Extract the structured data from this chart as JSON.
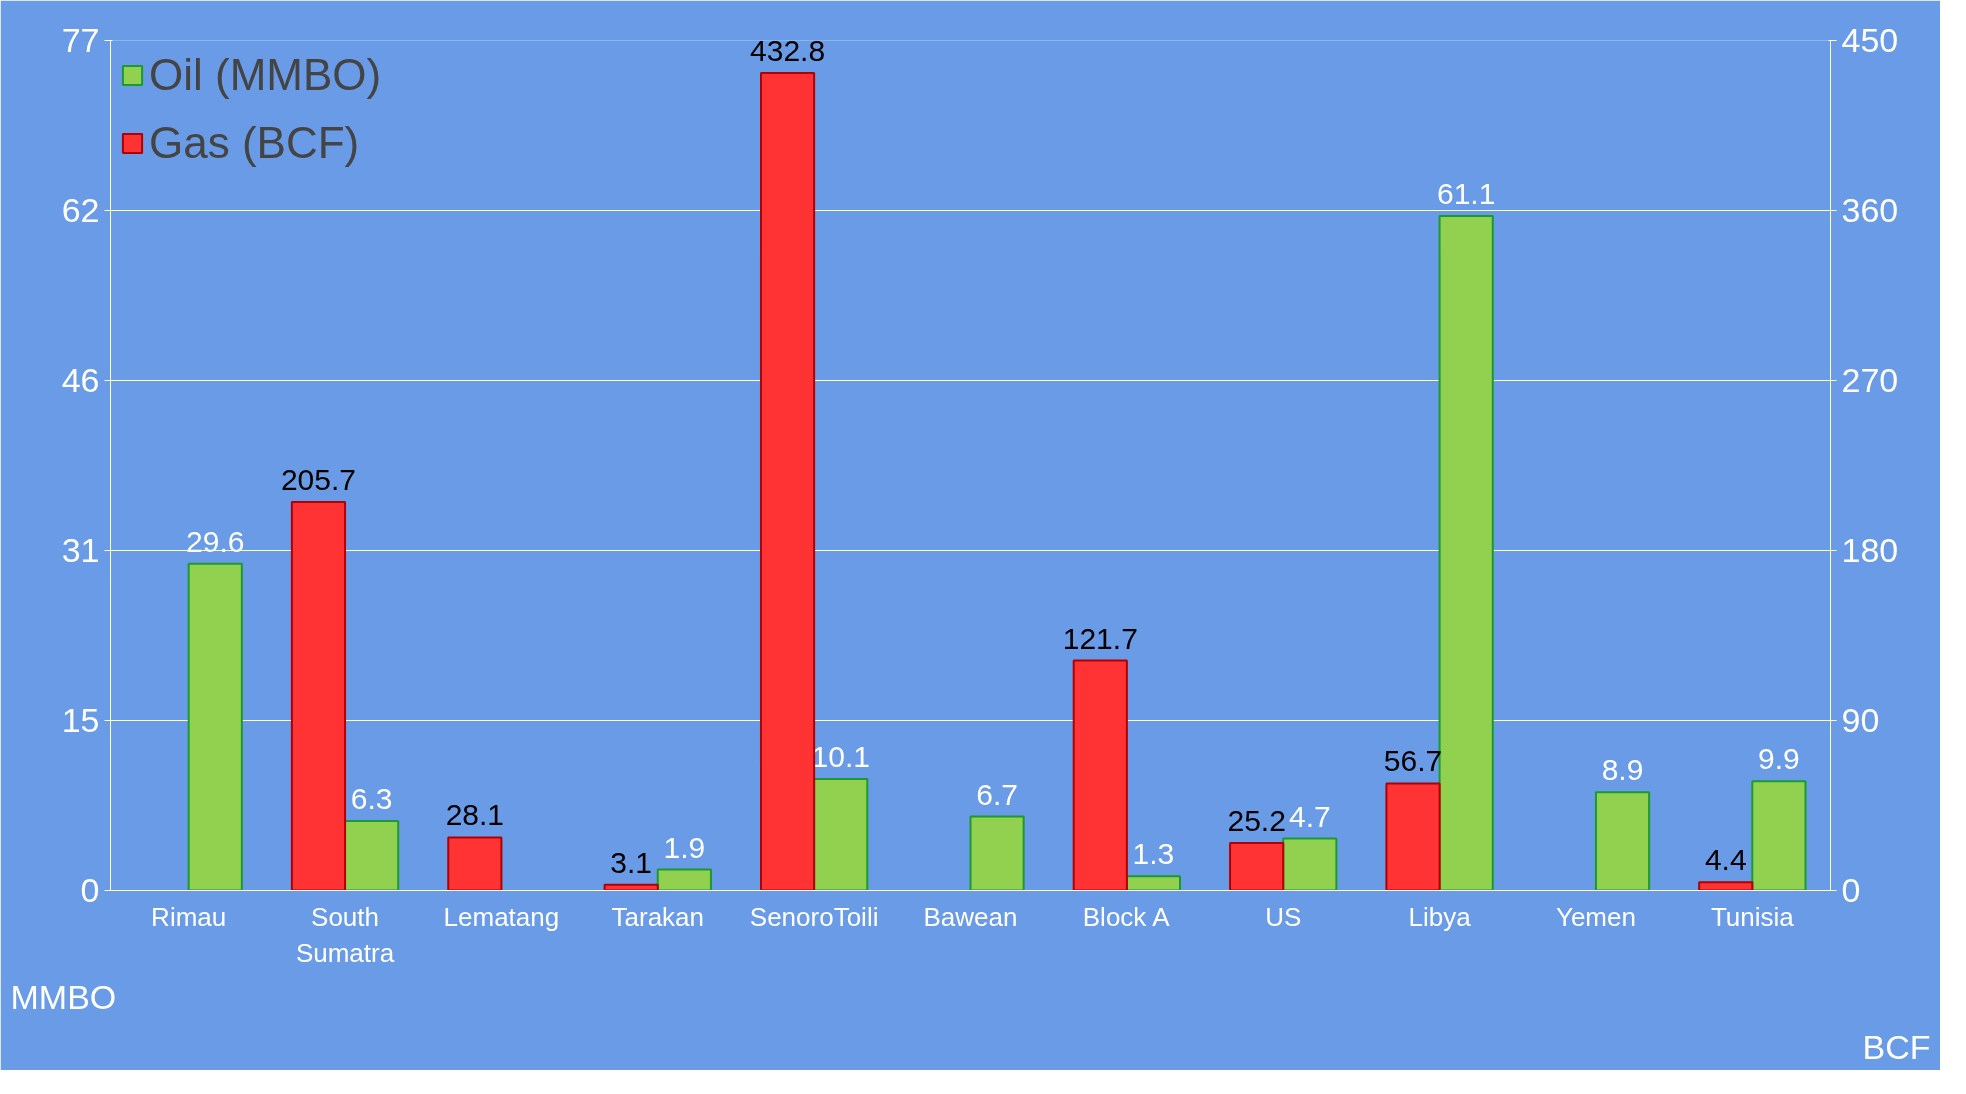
{
  "chart_data": {
    "type": "bar",
    "ylabel": "MMBO",
    "y2label": "BCF",
    "categories": [
      "Rimau",
      "South Sumatra",
      "Lematang",
      "Tarakan",
      "SenoroToili",
      "Bawean",
      "Block A",
      "US",
      "Libya",
      "Yemen",
      "Tunisia"
    ],
    "series": [
      {
        "name": "Oil (MMBO)",
        "color": "#92d050",
        "values": [
          29.6,
          6.3,
          null,
          1.9,
          10.1,
          6.7,
          1.3,
          4.7,
          61.1,
          8.9,
          9.9
        ]
      },
      {
        "name": "Gas (BCF)",
        "color": "#ff3333",
        "axis": "y2",
        "values": [
          null,
          205.7,
          28.1,
          3.1,
          432.8,
          null,
          121.7,
          25.2,
          56.7,
          null,
          4.4
        ]
      }
    ],
    "ylim": [
      0,
      77
    ],
    "yticks": [
      0,
      {
        "value": 15.4,
        "label": "15"
      },
      {
        "value": 30.8,
        "label": "31"
      },
      {
        "value": 46.2,
        "label": "46"
      },
      {
        "value": 61.6,
        "label": "62"
      },
      77
    ],
    "y2lim": [
      0,
      450
    ],
    "y2ticks": [
      0,
      90,
      180,
      270,
      360,
      450
    ],
    "grid": "y",
    "legend": "top left",
    "data_labels": true
  }
}
